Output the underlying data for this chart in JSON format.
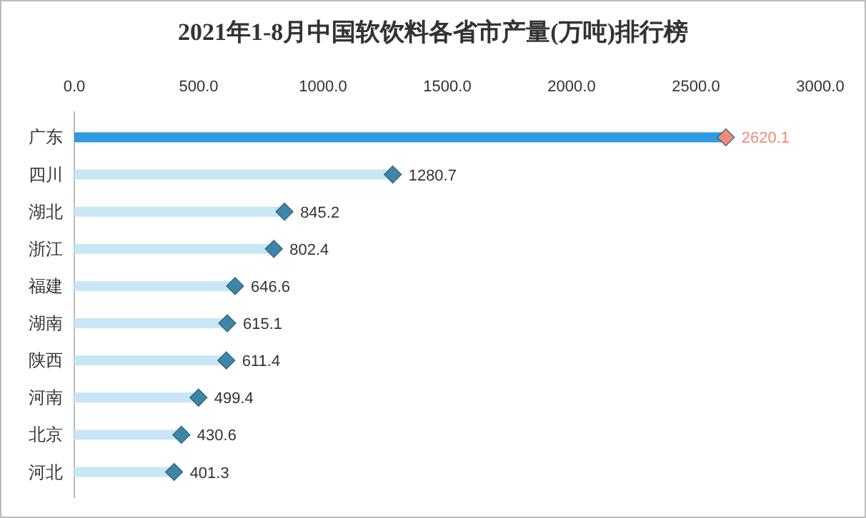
{
  "chart_data": {
    "type": "bar",
    "orientation": "horizontal",
    "title": "2021年1-8月中国软饮料各省市产量(万吨)排行榜",
    "categories": [
      "广东",
      "四川",
      "湖北",
      "浙江",
      "福建",
      "湖南",
      "陕西",
      "河南",
      "北京",
      "河北"
    ],
    "series": [
      {
        "values": [
          2620.1,
          1280.7,
          845.2,
          802.4,
          646.6,
          615.1,
          611.4,
          499.4,
          430.6,
          401.3
        ],
        "colors": [
          "#2f9ae0",
          "#c9e6f5",
          "#c9e6f5",
          "#c9e6f5",
          "#c9e6f5",
          "#c9e6f5",
          "#c9e6f5",
          "#c9e6f5",
          "#c9e6f5",
          "#c9e6f5"
        ]
      },
      {
        "type": "scatter",
        "values": [
          2620.1,
          1280.7,
          845.2,
          802.4,
          646.6,
          615.1,
          611.4,
          499.4,
          430.6,
          401.3
        ],
        "colors": [
          "#f08a78",
          "#3d86a8",
          "#3d86a8",
          "#3d86a8",
          "#3d86a8",
          "#3d86a8",
          "#3d86a8",
          "#3d86a8",
          "#3d86a8",
          "#3d86a8"
        ],
        "value_labels": [
          "2620.1",
          "1280.7",
          "845.2",
          "802.4",
          "646.6",
          "615.1",
          "611.4",
          "499.4",
          "430.6",
          "401.3"
        ]
      }
    ],
    "xlim": [
      0,
      3000
    ],
    "xticks": [
      {
        "value": 0,
        "label": "0.0"
      },
      {
        "value": 500,
        "label": "500.0"
      },
      {
        "value": 1000,
        "label": "1000.0"
      },
      {
        "value": 1500,
        "label": "1500.0"
      },
      {
        "value": 2000,
        "label": "2000.0"
      },
      {
        "value": 2500,
        "label": "2500.0"
      },
      {
        "value": 3000,
        "label": "3000.0"
      }
    ],
    "marker": "diamond"
  }
}
